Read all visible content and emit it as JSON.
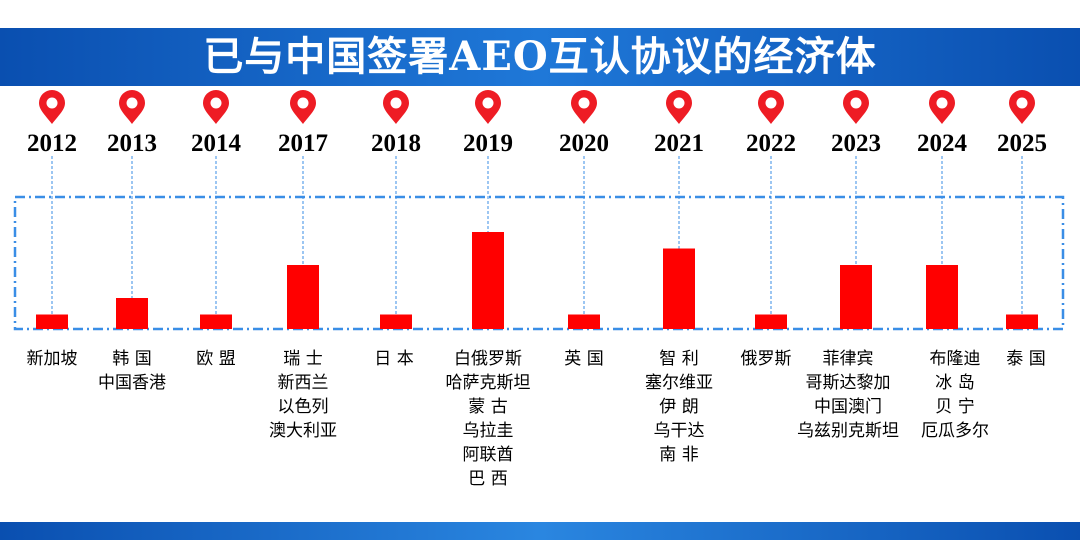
{
  "title": "已与中国签署AEO互认协议的经济体",
  "colors": {
    "title_bar": "#1565c8",
    "bar": "#ff0000",
    "pin": "#ee1c24",
    "guide_lines": "#3a8ee6"
  },
  "icons": {
    "marker": "map-pin-icon"
  },
  "chart_data": {
    "type": "bar",
    "title": "已与中国签署AEO互认协议的经济体",
    "categories": [
      "2012",
      "2013",
      "2014",
      "2017",
      "2018",
      "2019",
      "2020",
      "2021",
      "2022",
      "2023",
      "2024",
      "2025"
    ],
    "values": [
      1,
      2,
      1,
      4,
      1,
      6,
      1,
      5,
      1,
      4,
      4,
      1
    ],
    "economies": [
      [
        "新加坡"
      ],
      [
        "韩 国",
        "中国香港"
      ],
      [
        "欧 盟"
      ],
      [
        "瑞 士",
        "新西兰",
        "以色列",
        "澳大利亚"
      ],
      [
        "日 本"
      ],
      [
        "白俄罗斯",
        "哈萨克斯坦",
        "蒙 古",
        "乌拉圭",
        "阿联酋",
        "巴 西"
      ],
      [
        "英 国"
      ],
      [
        "智 利",
        "塞尔维亚",
        "伊 朗",
        "乌干达",
        "南 非"
      ],
      [
        "俄罗斯"
      ],
      [
        "菲律宾",
        "哥斯达黎加",
        "中国澳门",
        "乌兹别克斯坦"
      ],
      [
        "布隆迪",
        "冰 岛",
        "贝 宁",
        "厄瓜多尔"
      ],
      [
        "泰 国"
      ]
    ],
    "xlabel": "",
    "ylabel": "",
    "grid": false,
    "legend": "none"
  }
}
